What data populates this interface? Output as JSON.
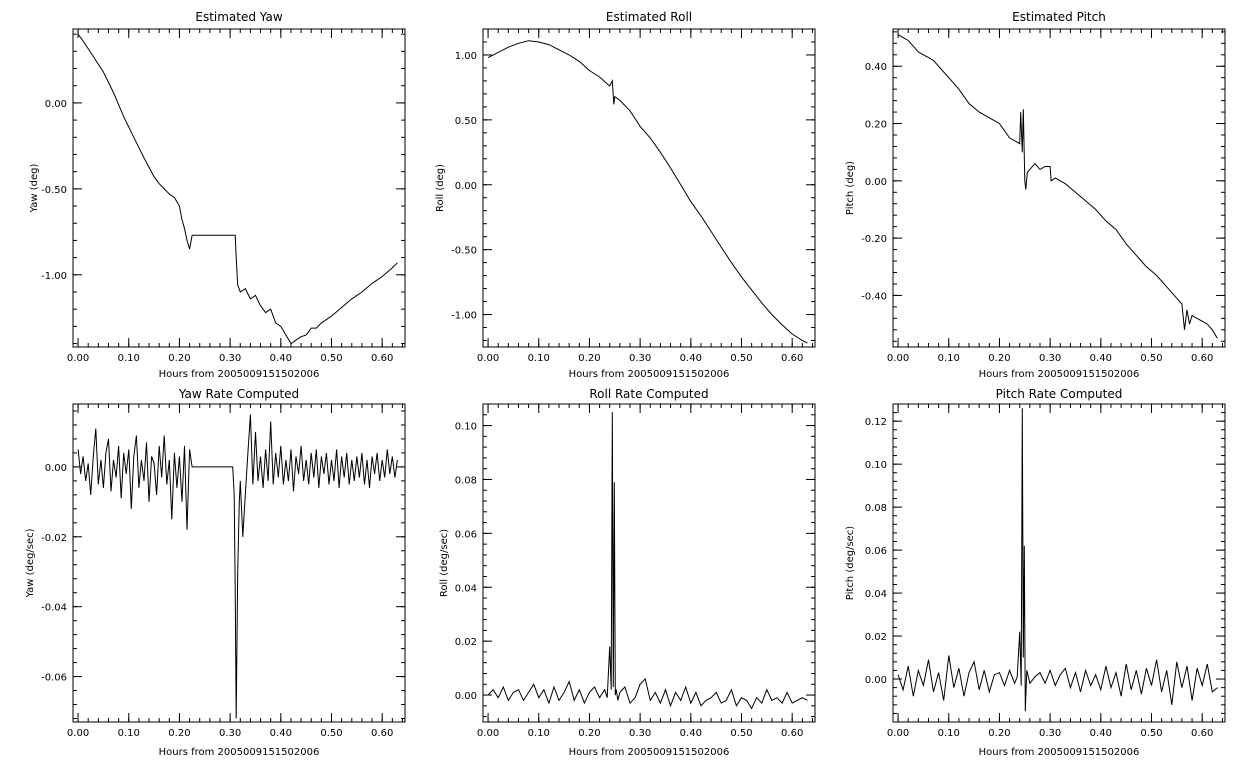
{
  "chart_data": [
    {
      "type": "line",
      "title": "Estimated Yaw",
      "xlabel": "Hours from 2005009151502006",
      "ylabel": "Yaw (deg)",
      "xlim": [
        -0.01,
        0.645
      ],
      "ylim": [
        -1.42,
        0.43
      ],
      "xticks": [
        0.0,
        0.1,
        0.2,
        0.3,
        0.4,
        0.5,
        0.6
      ],
      "xticklabels": [
        "0.00",
        "0.10",
        "0.20",
        "0.30",
        "0.40",
        "0.50",
        "0.60"
      ],
      "yticks": [
        0.0,
        -0.5,
        -1.0
      ],
      "yticklabels": [
        "0.00",
        "-0.50",
        "-1.00"
      ],
      "series": [
        {
          "x": [
            0.0,
            0.01,
            0.03,
            0.05,
            0.07,
            0.09,
            0.11,
            0.13,
            0.15,
            0.16,
            0.18,
            0.19,
            0.2,
            0.205,
            0.21,
            0.215,
            0.22,
            0.225,
            0.31,
            0.312,
            0.315,
            0.32,
            0.33,
            0.34,
            0.35,
            0.36,
            0.37,
            0.38,
            0.39,
            0.4,
            0.41,
            0.42,
            0.43,
            0.44,
            0.45,
            0.46,
            0.47,
            0.48,
            0.5,
            0.52,
            0.54,
            0.56,
            0.58,
            0.6,
            0.62,
            0.63
          ],
          "y": [
            0.4,
            0.36,
            0.27,
            0.18,
            0.06,
            -0.08,
            -0.2,
            -0.32,
            -0.43,
            -0.47,
            -0.53,
            -0.55,
            -0.6,
            -0.68,
            -0.73,
            -0.8,
            -0.85,
            -0.77,
            -0.77,
            -0.9,
            -1.06,
            -1.1,
            -1.08,
            -1.14,
            -1.12,
            -1.18,
            -1.22,
            -1.2,
            -1.28,
            -1.3,
            -1.35,
            -1.4,
            -1.38,
            -1.36,
            -1.35,
            -1.31,
            -1.31,
            -1.28,
            -1.24,
            -1.19,
            -1.14,
            -1.1,
            -1.05,
            -1.01,
            -0.96,
            -0.93
          ]
        }
      ]
    },
    {
      "type": "line",
      "title": "Estimated Roll",
      "xlabel": "Hours from 2005009151502006",
      "ylabel": "Roll (deg)",
      "xlim": [
        -0.01,
        0.645
      ],
      "ylim": [
        -1.25,
        1.2
      ],
      "xticks": [
        0.0,
        0.1,
        0.2,
        0.3,
        0.4,
        0.5,
        0.6
      ],
      "xticklabels": [
        "0.00",
        "0.10",
        "0.20",
        "0.30",
        "0.40",
        "0.50",
        "0.60"
      ],
      "yticks": [
        1.0,
        0.5,
        0.0,
        -0.5,
        -1.0
      ],
      "yticklabels": [
        "1.00",
        "0.50",
        "0.00",
        "-0.50",
        "-1.00"
      ],
      "series": [
        {
          "x": [
            0.0,
            0.02,
            0.04,
            0.06,
            0.08,
            0.1,
            0.12,
            0.14,
            0.16,
            0.18,
            0.2,
            0.22,
            0.24,
            0.245,
            0.248,
            0.25,
            0.26,
            0.28,
            0.3,
            0.32,
            0.34,
            0.36,
            0.38,
            0.4,
            0.42,
            0.44,
            0.46,
            0.48,
            0.5,
            0.52,
            0.54,
            0.56,
            0.58,
            0.6,
            0.62,
            0.63
          ],
          "y": [
            0.98,
            1.02,
            1.06,
            1.09,
            1.11,
            1.1,
            1.08,
            1.04,
            1.0,
            0.95,
            0.88,
            0.83,
            0.76,
            0.8,
            0.62,
            0.68,
            0.65,
            0.57,
            0.45,
            0.36,
            0.25,
            0.13,
            0.0,
            -0.13,
            -0.24,
            -0.36,
            -0.48,
            -0.6,
            -0.71,
            -0.81,
            -0.91,
            -1.0,
            -1.08,
            -1.15,
            -1.2,
            -1.22
          ]
        }
      ]
    },
    {
      "type": "line",
      "title": "Estimated Pitch",
      "xlabel": "Hours from 2005009151502006",
      "ylabel": "Pitch (deg)",
      "xlim": [
        -0.01,
        0.645
      ],
      "ylim": [
        -0.58,
        0.53
      ],
      "xticks": [
        0.0,
        0.1,
        0.2,
        0.3,
        0.4,
        0.5,
        0.6
      ],
      "xticklabels": [
        "0.00",
        "0.10",
        "0.20",
        "0.30",
        "0.40",
        "0.50",
        "0.60"
      ],
      "yticks": [
        0.4,
        0.2,
        0.0,
        -0.2,
        -0.4
      ],
      "yticklabels": [
        "0.40",
        "0.20",
        "0.00",
        "-0.20",
        "-0.40"
      ],
      "series": [
        {
          "x": [
            0.0,
            0.01,
            0.02,
            0.03,
            0.04,
            0.05,
            0.06,
            0.07,
            0.08,
            0.09,
            0.1,
            0.12,
            0.14,
            0.16,
            0.18,
            0.2,
            0.22,
            0.23,
            0.24,
            0.242,
            0.245,
            0.247,
            0.25,
            0.252,
            0.255,
            0.26,
            0.27,
            0.28,
            0.29,
            0.3,
            0.302,
            0.31,
            0.33,
            0.35,
            0.37,
            0.39,
            0.41,
            0.43,
            0.45,
            0.47,
            0.49,
            0.51,
            0.53,
            0.55,
            0.56,
            0.565,
            0.57,
            0.575,
            0.58,
            0.59,
            0.6,
            0.61,
            0.62,
            0.63
          ],
          "y": [
            0.51,
            0.5,
            0.49,
            0.47,
            0.45,
            0.44,
            0.43,
            0.42,
            0.4,
            0.38,
            0.36,
            0.32,
            0.27,
            0.24,
            0.22,
            0.2,
            0.15,
            0.14,
            0.13,
            0.24,
            0.1,
            0.25,
            0.0,
            -0.03,
            0.03,
            0.04,
            0.06,
            0.04,
            0.05,
            0.05,
            0.0,
            0.01,
            -0.01,
            -0.04,
            -0.07,
            -0.1,
            -0.14,
            -0.17,
            -0.22,
            -0.26,
            -0.3,
            -0.33,
            -0.37,
            -0.41,
            -0.43,
            -0.52,
            -0.45,
            -0.5,
            -0.47,
            -0.48,
            -0.49,
            -0.5,
            -0.52,
            -0.55
          ]
        }
      ]
    },
    {
      "type": "line",
      "title": "Yaw Rate Computed",
      "xlabel": "Hours from 2005009151502006",
      "ylabel": "Yaw (deg/sec)",
      "xlim": [
        -0.01,
        0.645
      ],
      "ylim": [
        -0.073,
        0.018
      ],
      "xticks": [
        0.0,
        0.1,
        0.2,
        0.3,
        0.4,
        0.5,
        0.6
      ],
      "xticklabels": [
        "0.00",
        "0.10",
        "0.20",
        "0.30",
        "0.40",
        "0.50",
        "0.60"
      ],
      "yticks": [
        0.0,
        -0.02,
        -0.04,
        -0.06
      ],
      "yticklabels": [
        "0.00",
        "-0.02",
        "-0.04",
        "-0.06"
      ],
      "series": [
        {
          "x": [
            0.0,
            0.005,
            0.01,
            0.015,
            0.02,
            0.025,
            0.03,
            0.035,
            0.04,
            0.045,
            0.05,
            0.055,
            0.06,
            0.065,
            0.07,
            0.075,
            0.08,
            0.085,
            0.09,
            0.095,
            0.1,
            0.105,
            0.11,
            0.115,
            0.12,
            0.125,
            0.13,
            0.135,
            0.14,
            0.145,
            0.15,
            0.155,
            0.16,
            0.165,
            0.17,
            0.175,
            0.18,
            0.185,
            0.19,
            0.195,
            0.2,
            0.205,
            0.21,
            0.215,
            0.22,
            0.225,
            0.305,
            0.308,
            0.31,
            0.312,
            0.315,
            0.318,
            0.32,
            0.325,
            0.33,
            0.335,
            0.34,
            0.345,
            0.35,
            0.355,
            0.36,
            0.365,
            0.37,
            0.375,
            0.38,
            0.385,
            0.39,
            0.395,
            0.4,
            0.405,
            0.41,
            0.415,
            0.42,
            0.425,
            0.43,
            0.435,
            0.44,
            0.445,
            0.45,
            0.455,
            0.46,
            0.465,
            0.47,
            0.475,
            0.48,
            0.485,
            0.49,
            0.495,
            0.5,
            0.505,
            0.51,
            0.515,
            0.52,
            0.525,
            0.53,
            0.535,
            0.54,
            0.545,
            0.55,
            0.555,
            0.56,
            0.565,
            0.57,
            0.575,
            0.58,
            0.585,
            0.59,
            0.595,
            0.6,
            0.605,
            0.61,
            0.615,
            0.62,
            0.625,
            0.63
          ],
          "y": [
            0.005,
            -0.002,
            0.003,
            -0.004,
            0.001,
            -0.008,
            0.003,
            0.011,
            -0.005,
            0.002,
            -0.006,
            0.004,
            0.008,
            -0.007,
            0.002,
            -0.003,
            0.006,
            -0.009,
            0.004,
            -0.002,
            0.005,
            -0.012,
            0.003,
            0.009,
            -0.006,
            0.002,
            -0.004,
            0.007,
            -0.01,
            0.003,
            0.001,
            -0.008,
            0.006,
            -0.003,
            0.009,
            -0.005,
            0.002,
            -0.015,
            0.004,
            -0.006,
            0.003,
            -0.01,
            0.006,
            -0.018,
            0.005,
            0.0,
            0.0,
            -0.008,
            -0.035,
            -0.072,
            -0.03,
            -0.01,
            -0.004,
            -0.02,
            -0.008,
            0.004,
            0.015,
            -0.005,
            0.01,
            -0.004,
            0.003,
            -0.006,
            0.005,
            -0.004,
            0.013,
            -0.005,
            0.004,
            -0.003,
            0.006,
            -0.005,
            0.002,
            -0.004,
            0.005,
            -0.007,
            0.003,
            -0.002,
            0.006,
            -0.004,
            0.002,
            -0.005,
            0.004,
            -0.003,
            0.005,
            -0.006,
            0.003,
            -0.002,
            0.004,
            -0.005,
            0.002,
            -0.004,
            0.005,
            -0.006,
            0.003,
            -0.003,
            0.004,
            -0.005,
            0.002,
            -0.004,
            0.003,
            -0.003,
            0.004,
            -0.005,
            0.002,
            -0.006,
            0.003,
            -0.002,
            0.004,
            -0.004,
            0.002,
            -0.003,
            0.005,
            -0.002,
            0.003,
            -0.003,
            0.002
          ]
        }
      ]
    },
    {
      "type": "line",
      "title": "Roll Rate Computed",
      "xlabel": "Hours from 2005009151502006",
      "ylabel": "Roll (deg/sec)",
      "xlim": [
        -0.01,
        0.645
      ],
      "ylim": [
        -0.01,
        0.108
      ],
      "xticks": [
        0.0,
        0.1,
        0.2,
        0.3,
        0.4,
        0.5,
        0.6
      ],
      "xticklabels": [
        "0.00",
        "0.10",
        "0.20",
        "0.30",
        "0.40",
        "0.50",
        "0.60"
      ],
      "yticks": [
        0.1,
        0.08,
        0.06,
        0.04,
        0.02,
        0.0
      ],
      "yticklabels": [
        "0.10",
        "0.08",
        "0.06",
        "0.04",
        "0.02",
        "0.00"
      ],
      "series": [
        {
          "x": [
            0.0,
            0.01,
            0.02,
            0.03,
            0.04,
            0.05,
            0.06,
            0.07,
            0.08,
            0.09,
            0.1,
            0.11,
            0.12,
            0.13,
            0.14,
            0.15,
            0.16,
            0.17,
            0.18,
            0.19,
            0.2,
            0.21,
            0.22,
            0.23,
            0.235,
            0.24,
            0.243,
            0.245,
            0.247,
            0.249,
            0.251,
            0.253,
            0.256,
            0.26,
            0.27,
            0.28,
            0.29,
            0.3,
            0.31,
            0.32,
            0.33,
            0.34,
            0.35,
            0.36,
            0.37,
            0.38,
            0.39,
            0.4,
            0.41,
            0.42,
            0.43,
            0.44,
            0.45,
            0.46,
            0.47,
            0.48,
            0.49,
            0.5,
            0.51,
            0.52,
            0.53,
            0.54,
            0.55,
            0.56,
            0.57,
            0.58,
            0.59,
            0.6,
            0.61,
            0.62,
            0.63
          ],
          "y": [
            0.0,
            0.002,
            -0.001,
            0.003,
            -0.002,
            0.001,
            0.002,
            -0.002,
            0.001,
            0.004,
            -0.001,
            0.002,
            -0.003,
            0.003,
            -0.002,
            0.001,
            0.005,
            -0.002,
            0.002,
            -0.003,
            0.001,
            0.003,
            -0.001,
            0.002,
            -0.001,
            0.018,
            0.002,
            0.105,
            0.003,
            0.079,
            0.0,
            0.002,
            -0.002,
            0.001,
            0.003,
            -0.003,
            -0.001,
            0.004,
            0.006,
            -0.002,
            0.001,
            -0.003,
            0.002,
            -0.004,
            0.001,
            -0.002,
            0.003,
            -0.003,
            0.001,
            -0.004,
            -0.002,
            -0.001,
            0.001,
            -0.003,
            -0.002,
            0.002,
            -0.004,
            -0.001,
            -0.002,
            -0.005,
            -0.001,
            -0.003,
            0.002,
            -0.002,
            -0.001,
            -0.003,
            0.001,
            -0.003,
            -0.002,
            -0.001,
            -0.002
          ]
        }
      ]
    },
    {
      "type": "line",
      "title": "Pitch Rate Computed",
      "xlabel": "Hours from 2005009151502006",
      "ylabel": "Pitch (deg/sec)",
      "xlim": [
        -0.01,
        0.645
      ],
      "ylim": [
        -0.02,
        0.128
      ],
      "xticks": [
        0.0,
        0.1,
        0.2,
        0.3,
        0.4,
        0.5,
        0.6
      ],
      "xticklabels": [
        "0.00",
        "0.10",
        "0.20",
        "0.30",
        "0.40",
        "0.50",
        "0.60"
      ],
      "yticks": [
        0.12,
        0.1,
        0.08,
        0.06,
        0.04,
        0.02,
        0.0
      ],
      "yticklabels": [
        "0.12",
        "0.10",
        "0.08",
        "0.06",
        "0.04",
        "0.02",
        "0.00"
      ],
      "series": [
        {
          "x": [
            0.0,
            0.01,
            0.02,
            0.03,
            0.04,
            0.05,
            0.06,
            0.07,
            0.08,
            0.09,
            0.1,
            0.11,
            0.12,
            0.13,
            0.14,
            0.15,
            0.16,
            0.17,
            0.18,
            0.19,
            0.2,
            0.21,
            0.22,
            0.23,
            0.235,
            0.24,
            0.243,
            0.245,
            0.247,
            0.249,
            0.251,
            0.254,
            0.26,
            0.27,
            0.28,
            0.29,
            0.3,
            0.31,
            0.32,
            0.33,
            0.34,
            0.35,
            0.36,
            0.37,
            0.38,
            0.39,
            0.4,
            0.41,
            0.42,
            0.43,
            0.44,
            0.45,
            0.46,
            0.47,
            0.48,
            0.49,
            0.5,
            0.51,
            0.52,
            0.53,
            0.54,
            0.55,
            0.56,
            0.57,
            0.58,
            0.59,
            0.6,
            0.61,
            0.62,
            0.63
          ],
          "y": [
            0.002,
            -0.005,
            0.006,
            -0.008,
            0.004,
            -0.003,
            0.009,
            -0.006,
            0.003,
            -0.01,
            0.011,
            -0.004,
            0.005,
            -0.008,
            0.003,
            0.008,
            -0.005,
            0.004,
            -0.006,
            0.002,
            0.003,
            -0.003,
            0.004,
            -0.002,
            0.001,
            0.022,
            -0.003,
            0.126,
            0.01,
            0.062,
            -0.015,
            0.004,
            -0.002,
            0.001,
            0.003,
            -0.002,
            0.004,
            -0.003,
            0.002,
            0.005,
            -0.004,
            0.003,
            -0.006,
            0.004,
            -0.003,
            0.002,
            -0.005,
            0.006,
            -0.004,
            0.003,
            -0.008,
            0.007,
            -0.005,
            0.004,
            -0.007,
            0.005,
            -0.003,
            0.009,
            -0.006,
            0.004,
            -0.012,
            0.008,
            -0.004,
            0.006,
            -0.01,
            0.005,
            -0.003,
            0.007,
            -0.006,
            -0.004
          ]
        }
      ]
    }
  ]
}
